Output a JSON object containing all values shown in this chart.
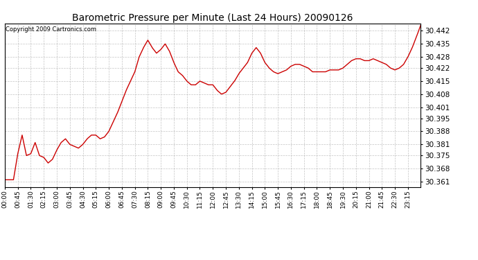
{
  "title": "Barometric Pressure per Minute (Last 24 Hours) 20090126",
  "copyright": "Copyright 2009 Cartronics.com",
  "line_color": "#cc0000",
  "background_color": "#ffffff",
  "plot_bg_color": "#ffffff",
  "grid_color": "#aaaaaa",
  "ylim_min": 30.358,
  "ylim_max": 30.446,
  "yticks": [
    30.361,
    30.368,
    30.375,
    30.381,
    30.388,
    30.395,
    30.401,
    30.408,
    30.415,
    30.422,
    30.428,
    30.435,
    30.442
  ],
  "xtick_labels": [
    "00:00",
    "00:45",
    "01:30",
    "02:15",
    "03:00",
    "03:45",
    "04:30",
    "05:15",
    "06:00",
    "06:45",
    "07:30",
    "08:15",
    "09:00",
    "09:45",
    "10:30",
    "11:15",
    "12:00",
    "12:45",
    "13:30",
    "14:15",
    "15:00",
    "15:45",
    "16:30",
    "17:15",
    "18:00",
    "18:45",
    "19:30",
    "20:15",
    "21:00",
    "21:45",
    "22:30",
    "23:15"
  ],
  "anchors_x": [
    0,
    30,
    45,
    60,
    75,
    90,
    105,
    120,
    135,
    150,
    165,
    180,
    195,
    210,
    225,
    240,
    255,
    270,
    285,
    300,
    315,
    330,
    345,
    360,
    375,
    390,
    405,
    420,
    435,
    450,
    465,
    480,
    495,
    510,
    525,
    540,
    555,
    570,
    585,
    600,
    615,
    630,
    645,
    660,
    675,
    690,
    705,
    720,
    735,
    750,
    765,
    780,
    795,
    810,
    825,
    840,
    855,
    870,
    885,
    900,
    915,
    930,
    945,
    960,
    975,
    990,
    1005,
    1020,
    1035,
    1050,
    1065,
    1080,
    1095,
    1110,
    1125,
    1140,
    1155,
    1170,
    1185,
    1200,
    1215,
    1230,
    1245,
    1260,
    1275,
    1290,
    1305,
    1320,
    1335,
    1350,
    1365,
    1380,
    1395,
    1410,
    1425,
    1439
  ],
  "anchors_y": [
    30.362,
    30.362,
    30.376,
    30.386,
    30.375,
    30.376,
    30.382,
    30.375,
    30.374,
    30.371,
    30.373,
    30.378,
    30.382,
    30.384,
    30.381,
    30.38,
    30.379,
    30.381,
    30.384,
    30.386,
    30.386,
    30.384,
    30.385,
    30.388,
    30.393,
    30.398,
    30.404,
    30.41,
    30.415,
    30.42,
    30.428,
    30.433,
    30.437,
    30.433,
    30.43,
    30.432,
    30.435,
    30.431,
    30.425,
    30.42,
    30.418,
    30.415,
    30.413,
    30.413,
    30.415,
    30.414,
    30.413,
    30.413,
    30.41,
    30.408,
    30.409,
    30.412,
    30.415,
    30.419,
    30.422,
    30.425,
    30.43,
    30.433,
    30.43,
    30.425,
    30.422,
    30.42,
    30.419,
    30.42,
    30.421,
    30.423,
    30.424,
    30.424,
    30.423,
    30.422,
    30.42,
    30.42,
    30.42,
    30.42,
    30.421,
    30.421,
    30.421,
    30.422,
    30.424,
    30.426,
    30.427,
    30.427,
    30.426,
    30.426,
    30.427,
    30.426,
    30.425,
    30.424,
    30.422,
    30.421,
    30.422,
    30.424,
    30.428,
    30.433,
    30.439,
    30.445
  ]
}
